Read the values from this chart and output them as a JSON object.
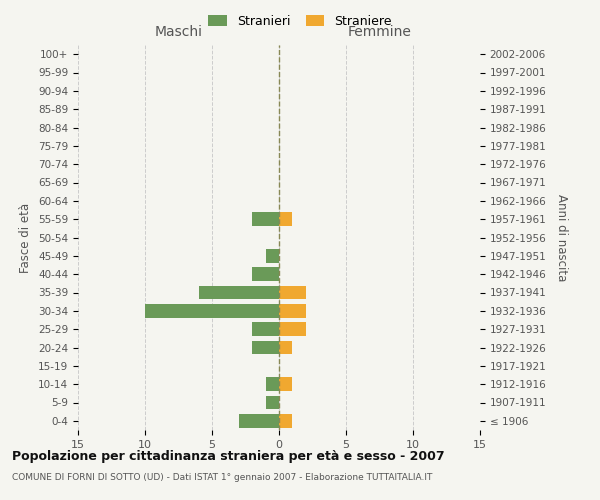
{
  "age_groups": [
    "100+",
    "95-99",
    "90-94",
    "85-89",
    "80-84",
    "75-79",
    "70-74",
    "65-69",
    "60-64",
    "55-59",
    "50-54",
    "45-49",
    "40-44",
    "35-39",
    "30-34",
    "25-29",
    "20-24",
    "15-19",
    "10-14",
    "5-9",
    "0-4"
  ],
  "birth_years": [
    "≤ 1906",
    "1907-1911",
    "1912-1916",
    "1917-1921",
    "1922-1926",
    "1927-1931",
    "1932-1936",
    "1937-1941",
    "1942-1946",
    "1947-1951",
    "1952-1956",
    "1957-1961",
    "1962-1966",
    "1967-1971",
    "1972-1976",
    "1977-1981",
    "1982-1986",
    "1987-1991",
    "1992-1996",
    "1997-2001",
    "2002-2006"
  ],
  "males": [
    0,
    0,
    0,
    0,
    0,
    0,
    0,
    0,
    0,
    2,
    0,
    1,
    2,
    6,
    10,
    2,
    2,
    0,
    1,
    1,
    3
  ],
  "females": [
    0,
    0,
    0,
    0,
    0,
    0,
    0,
    0,
    0,
    1,
    0,
    0,
    0,
    2,
    2,
    2,
    1,
    0,
    1,
    0,
    1
  ],
  "male_color": "#6a9a58",
  "female_color": "#f0a830",
  "title": "Popolazione per cittadinanza straniera per età e sesso - 2007",
  "subtitle": "COMUNE DI FORNI DI SOTTO (UD) - Dati ISTAT 1° gennaio 2007 - Elaborazione TUTTAITALIA.IT",
  "ylabel_left": "Fasce di età",
  "ylabel_right": "Anni di nascita",
  "xlabel_left": "Maschi",
  "xlabel_right": "Femmine",
  "legend_male": "Stranieri",
  "legend_female": "Straniere",
  "xlim": 15,
  "background_color": "#f5f5f0",
  "grid_color": "#cccccc",
  "bar_height": 0.75
}
